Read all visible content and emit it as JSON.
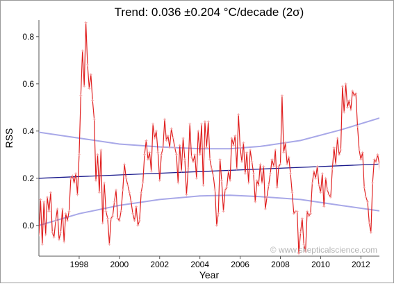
{
  "chart_data": {
    "type": "line",
    "title": "Trend: 0.036 ±0.204 °C/decade (2σ)",
    "xlabel": "Year",
    "ylabel": "RSS",
    "watermark": "© www.skepticalscience.com",
    "xlim": [
      1996.0,
      2012.92
    ],
    "ylim": [
      -0.13,
      0.87
    ],
    "x_ticks": [
      1998,
      2000,
      2002,
      2004,
      2006,
      2008,
      2010,
      2012
    ],
    "x_tick_labels": [
      "1998",
      "2000",
      "2002",
      "2004",
      "2006",
      "2008",
      "2010",
      "2012"
    ],
    "y_ticks": [
      0.0,
      0.2,
      0.4,
      0.6,
      0.8
    ],
    "y_tick_labels": [
      "0.0",
      "0.2",
      "0.4",
      "0.6",
      "0.8"
    ],
    "grid": false,
    "colors": {
      "anomaly": "#e02020",
      "trend": "#1a1a8c",
      "confidence": "#a8a8e8",
      "watermark": "#b4b4b4",
      "axis": "#555555"
    },
    "series": [
      {
        "role": "monthly anomaly",
        "start_year": 1996.0,
        "step_years": 0.08333,
        "values": [
          -0.04,
          0.11,
          -0.08,
          0.1,
          -0.04,
          0.12,
          0.06,
          0.14,
          -0.03,
          -0.05,
          0.02,
          0.07,
          -0.06,
          -0.03,
          0.07,
          -0.07,
          0.05,
          0.02,
          0.06,
          0.2,
          0.21,
          0.18,
          0.22,
          0.13,
          0.3,
          0.55,
          0.74,
          0.59,
          0.86,
          0.68,
          0.58,
          0.64,
          0.53,
          0.45,
          0.19,
          0.3,
          0.14,
          0.32,
          0.01,
          0.18,
          0.06,
          0.03,
          -0.08,
          0.03,
          0.04,
          0.1,
          0.15,
          0.03,
          0.02,
          0.06,
          0.15,
          0.26,
          0.2,
          0.17,
          0.14,
          0.1,
          0.05,
          0.02,
          0.08,
          0.0,
          0.02,
          0.14,
          0.18,
          0.3,
          0.36,
          0.28,
          0.31,
          0.23,
          0.43,
          0.37,
          0.4,
          0.31,
          0.19,
          0.3,
          0.33,
          0.45,
          0.36,
          0.38,
          0.33,
          0.41,
          0.37,
          0.33,
          0.3,
          0.18,
          0.34,
          0.23,
          0.37,
          0.28,
          0.13,
          0.24,
          0.43,
          0.29,
          0.27,
          0.3,
          0.2,
          0.4,
          0.3,
          0.43,
          0.17,
          0.44,
          0.33,
          0.44,
          0.28,
          0.24,
          0.21,
          0.15,
          0.0,
          0.05,
          0.28,
          0.19,
          0.06,
          0.15,
          0.16,
          0.23,
          0.19,
          0.37,
          0.34,
          0.38,
          0.24,
          0.47,
          0.33,
          0.27,
          0.35,
          0.22,
          0.31,
          0.18,
          0.32,
          0.27,
          0.22,
          0.1,
          0.19,
          0.17,
          0.26,
          0.18,
          0.25,
          0.07,
          0.12,
          0.17,
          0.22,
          0.28,
          0.25,
          0.32,
          0.16,
          0.25,
          0.26,
          0.55,
          0.31,
          0.35,
          0.26,
          0.29,
          0.22,
          0.14,
          0.05,
          0.06,
          0.06,
          -0.12,
          -0.03,
          0.03,
          -0.08,
          -0.11,
          0.06,
          0.04,
          0.05,
          0.18,
          0.23,
          0.2,
          0.25,
          0.17,
          0.14,
          0.22,
          0.08,
          0.2,
          0.15,
          0.13,
          0.12,
          0.24,
          0.33,
          0.26,
          0.37,
          0.3,
          0.32,
          0.59,
          0.48,
          0.6,
          0.5,
          0.53,
          0.49,
          0.57,
          0.55,
          0.56,
          0.42,
          0.32,
          0.28,
          0.31,
          0.16,
          0.12,
          0.1,
          0.01,
          -0.03,
          0.18,
          0.28,
          0.27,
          0.3,
          0.26,
          0.16,
          0.13,
          0.11,
          0.03,
          -0.12,
          -0.07,
          0.33,
          0.24,
          0.29,
          0.33,
          0.26,
          0.21,
          0.38,
          0.3
        ]
      },
      {
        "role": "linear trend",
        "x": [
          1996.0,
          2012.92
        ],
        "values": [
          0.2,
          0.26
        ]
      },
      {
        "role": "upper 2σ bound",
        "x": [
          1996.0,
          1998.0,
          2000.0,
          2002.0,
          2004.0,
          2005.5,
          2007.0,
          2009.0,
          2011.0,
          2012.92
        ],
        "values": [
          0.395,
          0.37,
          0.345,
          0.333,
          0.325,
          0.325,
          0.335,
          0.36,
          0.405,
          0.455
        ]
      },
      {
        "role": "lower 2σ bound",
        "x": [
          1996.0,
          1998.0,
          2000.0,
          2002.0,
          2004.0,
          2005.5,
          2007.0,
          2009.0,
          2011.0,
          2012.92
        ],
        "values": [
          0.0,
          0.05,
          0.085,
          0.11,
          0.125,
          0.128,
          0.122,
          0.11,
          0.085,
          0.062
        ]
      }
    ]
  }
}
